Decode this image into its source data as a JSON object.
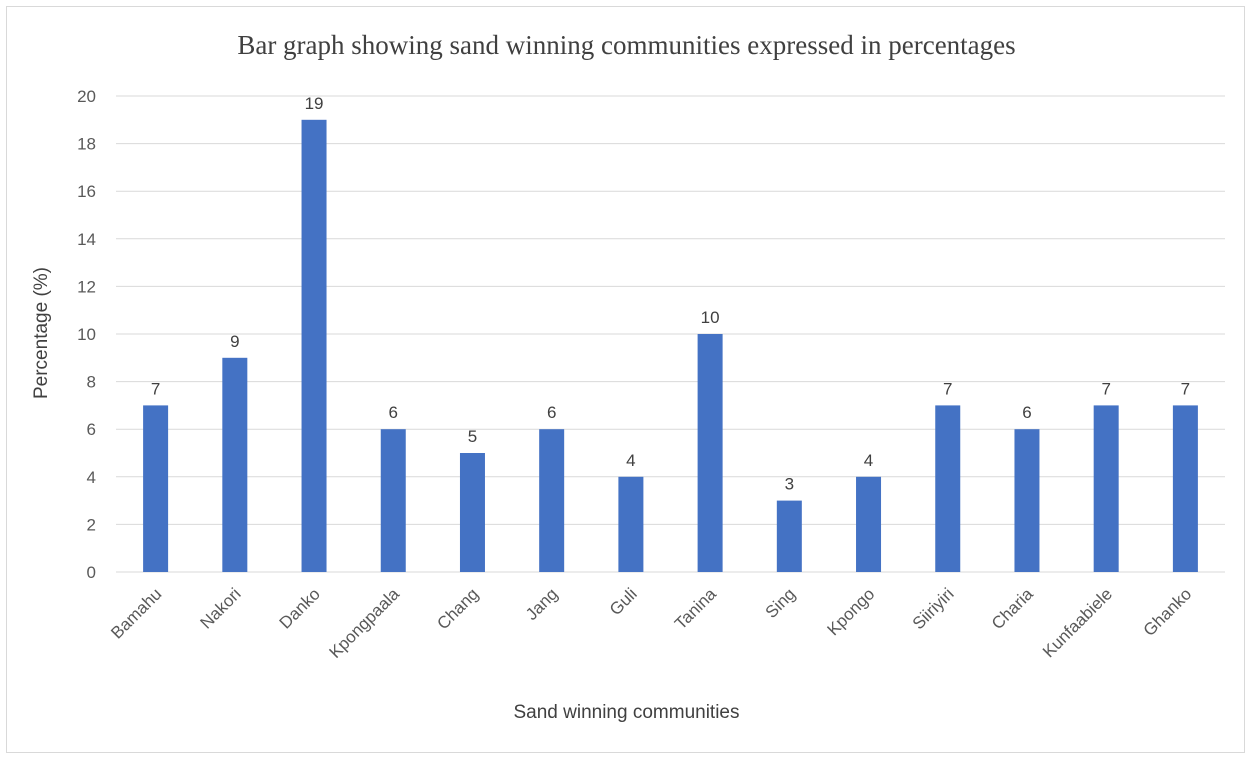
{
  "chart_data": {
    "type": "bar",
    "title": "Bar graph showing sand winning communities expressed in percentages",
    "xlabel": "Sand winning communities",
    "ylabel": "Percentage (%)",
    "categories": [
      "Bamahu",
      "Nakori",
      "Danko",
      "Kpongpaala",
      "Chang",
      "Jang",
      "Guli",
      "Tanina",
      "Sing",
      "Kpongo",
      "Siiriyiri",
      "Charia",
      "Kunfaabiele",
      "Ghanko"
    ],
    "values": [
      7,
      9,
      19,
      6,
      5,
      6,
      4,
      10,
      3,
      4,
      7,
      6,
      7,
      7
    ],
    "ylim": [
      0,
      20
    ],
    "yticks": [
      0,
      2,
      4,
      6,
      8,
      10,
      12,
      14,
      16,
      18,
      20
    ],
    "grid": true,
    "data_labels": true,
    "bar_color": "#4472C4",
    "grid_color": "#d9d9d9"
  }
}
